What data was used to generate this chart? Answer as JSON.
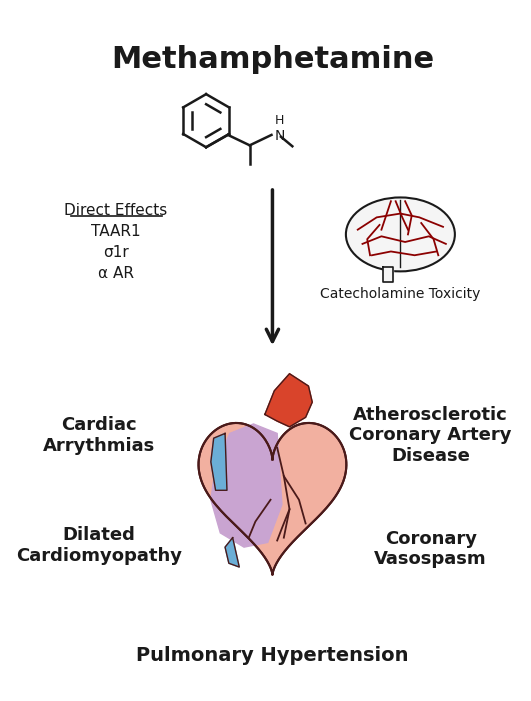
{
  "title": "Methamphetamine",
  "title_fontsize": 22,
  "title_fontweight": "bold",
  "bg_color": "#ffffff",
  "labels": {
    "top_left": "Direct Effects",
    "top_left_items": [
      "TAAR1",
      "σ1r",
      "α AR"
    ],
    "top_right": "Catecholamine Toxicity",
    "mid_left": "Cardiac\nArrythmias",
    "mid_right": "Atherosclerotic\nCoronary Artery\nDisease",
    "bot_left": "Dilated\nCardiomyopathy",
    "bot_right": "Coronary\nVasospasm",
    "bottom": "Pulmonary Hypertension"
  },
  "arrow_color": "#1a1a1a",
  "text_color": "#1a1a1a",
  "heart_colors": {
    "aorta": "#d9442b",
    "blue_vessel": "#6baed6",
    "purple": "#c9a4d1",
    "pink": "#f2b0a0",
    "outline": "#4a1a1a"
  },
  "brain_colors": {
    "fill": "#f5f5f5",
    "vessels": "#8b0000",
    "outline": "#1a1a1a"
  },
  "chemical_color": "#1a1a1a"
}
